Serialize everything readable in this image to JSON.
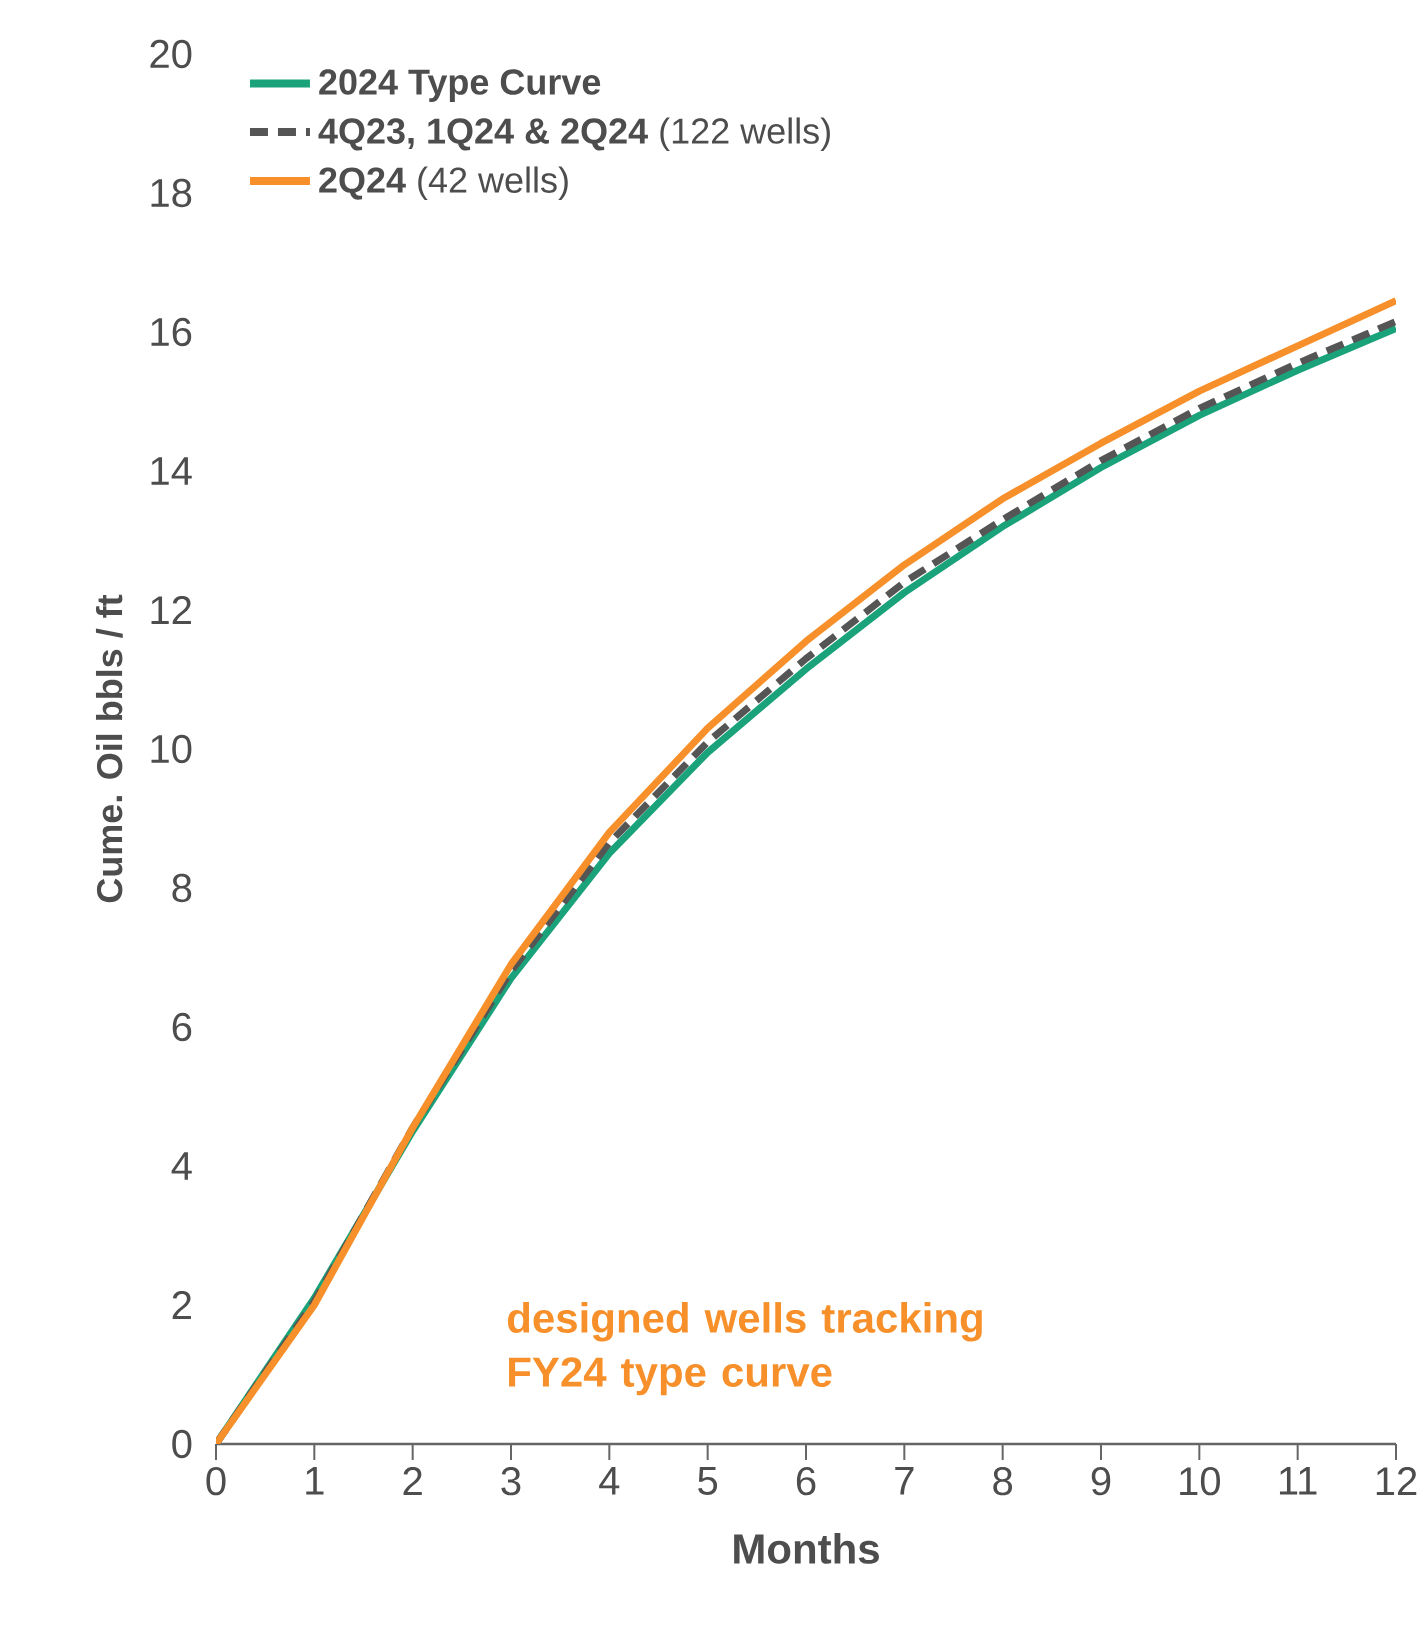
{
  "chart_data": {
    "type": "line",
    "xlabel": "Months",
    "ylabel": "Cume. Oil bbls / ft",
    "x": [
      0,
      1,
      2,
      3,
      4,
      5,
      6,
      7,
      8,
      9,
      10,
      11,
      12
    ],
    "xlim": [
      0,
      12
    ],
    "xticks": [
      0,
      1,
      2,
      3,
      4,
      5,
      6,
      7,
      8,
      9,
      10,
      11,
      12
    ],
    "ylim": [
      0,
      20
    ],
    "yticks": [
      0,
      2,
      4,
      6,
      8,
      10,
      12,
      14,
      16,
      18,
      20
    ],
    "legend": "top left",
    "grid": false,
    "series": [
      {
        "name": "**2024 Type Curve**",
        "color": "#1aa37a",
        "line_style": "solid",
        "values": [
          0,
          2.1,
          4.5,
          6.7,
          8.5,
          9.95,
          11.15,
          12.25,
          13.2,
          14.05,
          14.8,
          15.45,
          16.05
        ]
      },
      {
        "name": "**4Q23, 1Q24 & 2Q24** (122 wells)",
        "color": "#555555",
        "line_style": "dashed",
        "values": [
          0,
          2.05,
          4.55,
          6.8,
          8.65,
          10.1,
          11.3,
          12.4,
          13.3,
          14.15,
          14.9,
          15.55,
          16.15
        ]
      },
      {
        "name": "**2Q24** (42 wells)",
        "color": "#f7902a",
        "line_style": "solid",
        "values": [
          0,
          2.0,
          4.55,
          6.9,
          8.8,
          10.3,
          11.55,
          12.65,
          13.6,
          14.4,
          15.15,
          15.8,
          16.45
        ]
      }
    ],
    "annotations": [
      "designed wells tracking FY24 type curve"
    ]
  }
}
